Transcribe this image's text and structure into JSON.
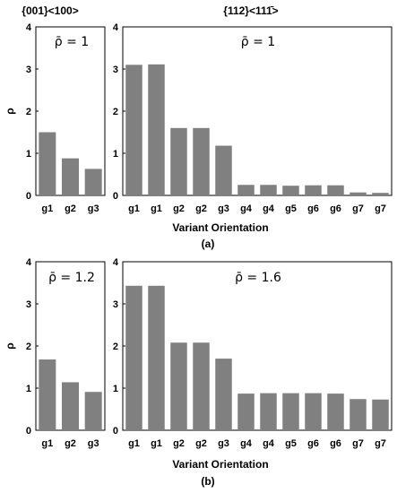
{
  "figure": {
    "panels": [
      {
        "label": "(a)",
        "xlabel": "Variant Orientation",
        "ylabel": "ρ",
        "charts": [
          {
            "type": "bar",
            "header": "{001}<100>",
            "annotation": "ρ̄ = 1",
            "ylim": [
              0,
              4
            ],
            "yticks": [
              0,
              1,
              2,
              3,
              4
            ],
            "categories": [
              "g1",
              "g2",
              "g3"
            ],
            "values": [
              1.5,
              0.88,
              0.63
            ]
          },
          {
            "type": "bar",
            "header": "{112}<111̄>",
            "annotation": "ρ̄ = 1",
            "ylim": [
              0,
              4
            ],
            "yticks": [
              0,
              1,
              2,
              3,
              4
            ],
            "categories": [
              "g1",
              "g1",
              "g2",
              "g2",
              "g3",
              "g4",
              "g4",
              "g5",
              "g6",
              "g6",
              "g7",
              "g7"
            ],
            "values": [
              3.1,
              3.11,
              1.6,
              1.6,
              1.18,
              0.25,
              0.25,
              0.23,
              0.24,
              0.24,
              0.07,
              0.06
            ]
          }
        ]
      },
      {
        "label": "(b)",
        "xlabel": "Variant Orientation",
        "ylabel": "ρ",
        "charts": [
          {
            "type": "bar",
            "header": "",
            "annotation": "ρ̄ = 1.2",
            "ylim": [
              0,
              4
            ],
            "yticks": [
              0,
              1,
              2,
              3,
              4
            ],
            "categories": [
              "g1",
              "g2",
              "g3"
            ],
            "values": [
              1.68,
              1.14,
              0.91
            ]
          },
          {
            "type": "bar",
            "header": "",
            "annotation": "ρ̄ = 1.6",
            "ylim": [
              0,
              4
            ],
            "yticks": [
              0,
              1,
              2,
              3,
              4
            ],
            "categories": [
              "g1",
              "g1",
              "g2",
              "g2",
              "g3",
              "g4",
              "g4",
              "g5",
              "g6",
              "g6",
              "g7",
              "g7"
            ],
            "values": [
              3.43,
              3.43,
              2.08,
              2.08,
              1.7,
              0.87,
              0.88,
              0.88,
              0.88,
              0.87,
              0.74,
              0.73
            ]
          }
        ]
      }
    ]
  },
  "style": {
    "bar_color": "#808080",
    "axis_color": "#000000"
  }
}
